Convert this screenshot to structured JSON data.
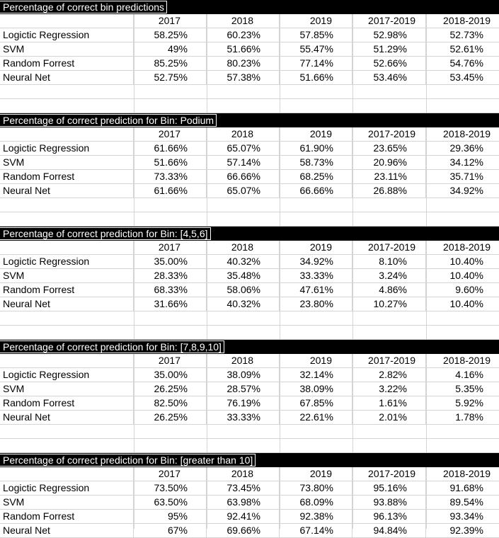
{
  "sections": [
    {
      "title": "Percentage of correct bin predictions",
      "headers": [
        "2017",
        "2018",
        "2019",
        "2017-2019",
        "2018-2019"
      ],
      "rows": [
        {
          "model": "Logictic Regression",
          "values": [
            "58.25%",
            "60.23%",
            "57.85%",
            "52.98%",
            "52.73%"
          ]
        },
        {
          "model": "SVM",
          "values": [
            "49%",
            "51.66%",
            "55.47%",
            "51.29%",
            "52.61%"
          ]
        },
        {
          "model": "Random Forrest",
          "values": [
            "85.25%",
            "80.23%",
            "77.14%",
            "52.66%",
            "54.76%"
          ]
        },
        {
          "model": "Neural Net",
          "values": [
            "52.75%",
            "57.38%",
            "51.66%",
            "53.46%",
            "53.45%"
          ]
        }
      ]
    },
    {
      "title": "Percentage of correct prediction for Bin: Podium",
      "headers": [
        "2017",
        "2018",
        "2019",
        "2017-2019",
        "2018-2019"
      ],
      "rows": [
        {
          "model": "Logictic Regression",
          "values": [
            "61.66%",
            "65.07%",
            "61.90%",
            "23.65%",
            "29.36%"
          ]
        },
        {
          "model": "SVM",
          "values": [
            "51.66%",
            "57.14%",
            "58.73%",
            "20.96%",
            "34.12%"
          ]
        },
        {
          "model": "Random Forrest",
          "values": [
            "73.33%",
            "66.66%",
            "68.25%",
            "23.11%",
            "35.71%"
          ]
        },
        {
          "model": "Neural Net",
          "values": [
            "61.66%",
            "65.07%",
            "66.66%",
            "26.88%",
            "34.92%"
          ]
        }
      ]
    },
    {
      "title": "Percentage of correct prediction for Bin: [4,5,6]",
      "headers": [
        "2017",
        "2018",
        "2019",
        "2017-2019",
        "2018-2019"
      ],
      "rows": [
        {
          "model": "Logictic Regression",
          "values": [
            "35.00%",
            "40.32%",
            "34.92%",
            "8.10%",
            "10.40%"
          ]
        },
        {
          "model": "SVM",
          "values": [
            "28.33%",
            "35.48%",
            "33.33%",
            "3.24%",
            "10.40%"
          ]
        },
        {
          "model": "Random Forrest",
          "values": [
            "68.33%",
            "58.06%",
            "47.61%",
            "4.86%",
            "9.60%"
          ]
        },
        {
          "model": "Neural Net",
          "values": [
            "31.66%",
            "40.32%",
            "23.80%",
            "10.27%",
            "10.40%"
          ]
        }
      ]
    },
    {
      "title": "Percentage of correct prediction for Bin: [7,8,9,10]",
      "headers": [
        "2017",
        "2018",
        "2019",
        "2017-2019",
        "2018-2019"
      ],
      "rows": [
        {
          "model": "Logictic Regression",
          "values": [
            "35.00%",
            "38.09%",
            "32.14%",
            "2.82%",
            "4.16%"
          ]
        },
        {
          "model": "SVM",
          "values": [
            "26.25%",
            "28.57%",
            "38.09%",
            "3.22%",
            "5.35%"
          ]
        },
        {
          "model": "Random Forrest",
          "values": [
            "82.50%",
            "76.19%",
            "67.85%",
            "1.61%",
            "5.92%"
          ]
        },
        {
          "model": "Neural Net",
          "values": [
            "26.25%",
            "33.33%",
            "22.61%",
            "2.01%",
            "1.78%"
          ]
        }
      ]
    },
    {
      "title": "Percentage of correct prediction for Bin: [greater than 10]",
      "headers": [
        "2017",
        "2018",
        "2019",
        "2017-2019",
        "2018-2019"
      ],
      "rows": [
        {
          "model": "Logictic Regression",
          "values": [
            "73.50%",
            "73.45%",
            "73.80%",
            "95.16%",
            "91.68%"
          ]
        },
        {
          "model": "SVM",
          "values": [
            "63.50%",
            "63.98%",
            "68.09%",
            "93.88%",
            "89.54%"
          ]
        },
        {
          "model": "Random Forrest",
          "values": [
            "95%",
            "92.41%",
            "92.38%",
            "96.13%",
            "93.34%"
          ]
        },
        {
          "model": "Neural Net",
          "values": [
            "67%",
            "69.66%",
            "67.14%",
            "94.84%",
            "92.39%"
          ]
        }
      ]
    }
  ],
  "colors": {
    "title_bar": "#000000",
    "title_text": "#ffffff",
    "gridline": "#d4d4d4"
  }
}
